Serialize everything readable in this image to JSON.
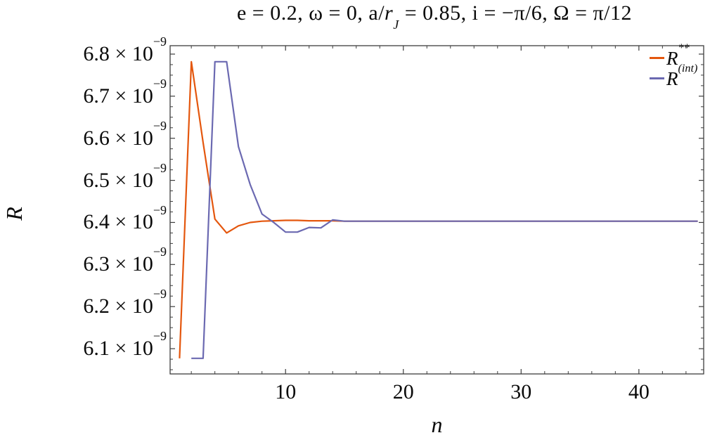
{
  "page": {
    "background": "#ffffff",
    "frame_color": "#3d3d3d",
    "text_color": "#0a0a0a"
  },
  "title": {
    "plain": "e = 0.2, ω = 0, a/r_J = 0.85, i = −π/6, Ω = π/12",
    "segments": [
      {
        "text": "e = 0.2, ω = 0, a/"
      },
      {
        "text": "r",
        "italic": true
      },
      {
        "text": "J",
        "sub": true,
        "italic": true
      },
      {
        "text": " = 0.85, i = −π/6, Ω = π/12"
      }
    ]
  },
  "chart_data": {
    "type": "line",
    "title": "e = 0.2, ω = 0, a/r_J = 0.85, i = −π/6, Ω = π/12",
    "xlabel": "n",
    "ylabel": "R",
    "value_scale": "values in units of 10^-9",
    "grid": false,
    "legend_position": "top-right-inside",
    "axes": {
      "x": {
        "label": "n",
        "range": [
          0.2,
          45.5
        ],
        "major_ticks": [
          10,
          20,
          30,
          40
        ],
        "tick_labels": [
          "10",
          "20",
          "30",
          "40"
        ],
        "minor_tick_step": 2,
        "minor_tick_start": 2,
        "minor_tick_end": 44
      },
      "y": {
        "label": "R",
        "range_scaled": [
          6.04,
          6.82
        ],
        "scale_exponent": "−9",
        "major_ticks": [
          6.8,
          6.7,
          6.6,
          6.5,
          6.4,
          6.3,
          6.2,
          6.1
        ],
        "tick_labels": [
          {
            "value": 6.8,
            "mantissa": "6.8 × 10",
            "exponent": "−9"
          },
          {
            "value": 6.7,
            "mantissa": "6.7 × 10",
            "exponent": "−9"
          },
          {
            "value": 6.6,
            "mantissa": "6.6 × 10",
            "exponent": "−9"
          },
          {
            "value": 6.5,
            "mantissa": "6.5 × 10",
            "exponent": "−9"
          },
          {
            "value": 6.4,
            "mantissa": "6.4 × 10",
            "exponent": "−9"
          },
          {
            "value": 6.3,
            "mantissa": "6.3 × 10",
            "exponent": "−9"
          },
          {
            "value": 6.2,
            "mantissa": "6.2 × 10",
            "exponent": "−9"
          },
          {
            "value": 6.1,
            "mantissa": "6.1 × 10",
            "exponent": "−9"
          }
        ],
        "minor_tick_step": 0.025,
        "minor_tick_start": 6.05,
        "minor_tick_end": 6.8
      }
    },
    "legend": [
      {
        "base": "R",
        "sup": "**",
        "color": "#e4570e"
      },
      {
        "base": "R",
        "sup": "(int)",
        "color": "#6b69b1"
      }
    ],
    "series": [
      {
        "name": "R**",
        "color": "#e4570e",
        "points": [
          [
            1,
            6.077
          ],
          [
            2,
            6.782
          ],
          [
            3,
            6.59
          ],
          [
            4,
            6.408
          ],
          [
            5,
            6.375
          ],
          [
            6,
            6.392
          ],
          [
            7,
            6.4
          ],
          [
            8,
            6.403
          ],
          [
            9,
            6.404
          ],
          [
            10,
            6.405
          ],
          [
            11,
            6.405
          ],
          [
            12,
            6.404
          ],
          [
            13,
            6.404
          ],
          [
            14,
            6.404
          ],
          [
            15,
            6.403
          ],
          [
            16,
            6.403
          ],
          [
            17,
            6.403
          ],
          [
            18,
            6.403
          ],
          [
            19,
            6.403
          ],
          [
            20,
            6.403
          ],
          [
            21,
            6.403
          ],
          [
            22,
            6.403
          ],
          [
            23,
            6.403
          ],
          [
            24,
            6.403
          ],
          [
            25,
            6.403
          ],
          [
            26,
            6.403
          ],
          [
            27,
            6.403
          ],
          [
            28,
            6.403
          ],
          [
            29,
            6.403
          ],
          [
            30,
            6.403
          ],
          [
            31,
            6.403
          ],
          [
            32,
            6.403
          ],
          [
            33,
            6.403
          ],
          [
            34,
            6.403
          ],
          [
            35,
            6.403
          ],
          [
            36,
            6.403
          ],
          [
            37,
            6.403
          ],
          [
            38,
            6.403
          ],
          [
            39,
            6.403
          ],
          [
            40,
            6.403
          ],
          [
            41,
            6.403
          ],
          [
            42,
            6.403
          ],
          [
            43,
            6.403
          ],
          [
            44,
            6.403
          ],
          [
            45,
            6.403
          ]
        ]
      },
      {
        "name": "R(int)",
        "color": "#6b69b1",
        "points": [
          [
            2,
            6.077
          ],
          [
            3,
            6.077
          ],
          [
            4,
            6.782
          ],
          [
            5,
            6.782
          ],
          [
            6,
            6.58
          ],
          [
            7,
            6.49
          ],
          [
            8,
            6.42
          ],
          [
            9,
            6.4
          ],
          [
            10,
            6.377
          ],
          [
            11,
            6.377
          ],
          [
            12,
            6.388
          ],
          [
            13,
            6.387
          ],
          [
            14,
            6.406
          ],
          [
            15,
            6.403
          ],
          [
            16,
            6.403
          ],
          [
            17,
            6.403
          ],
          [
            18,
            6.403
          ],
          [
            19,
            6.403
          ],
          [
            20,
            6.403
          ],
          [
            21,
            6.403
          ],
          [
            22,
            6.403
          ],
          [
            23,
            6.403
          ],
          [
            24,
            6.403
          ],
          [
            25,
            6.403
          ],
          [
            26,
            6.403
          ],
          [
            27,
            6.403
          ],
          [
            28,
            6.403
          ],
          [
            29,
            6.403
          ],
          [
            30,
            6.403
          ],
          [
            31,
            6.403
          ],
          [
            32,
            6.403
          ],
          [
            33,
            6.403
          ],
          [
            34,
            6.403
          ],
          [
            35,
            6.403
          ],
          [
            36,
            6.403
          ],
          [
            37,
            6.403
          ],
          [
            38,
            6.403
          ],
          [
            39,
            6.403
          ],
          [
            40,
            6.403
          ],
          [
            41,
            6.403
          ],
          [
            42,
            6.403
          ],
          [
            43,
            6.403
          ],
          [
            44,
            6.403
          ],
          [
            45,
            6.403
          ]
        ]
      }
    ]
  }
}
